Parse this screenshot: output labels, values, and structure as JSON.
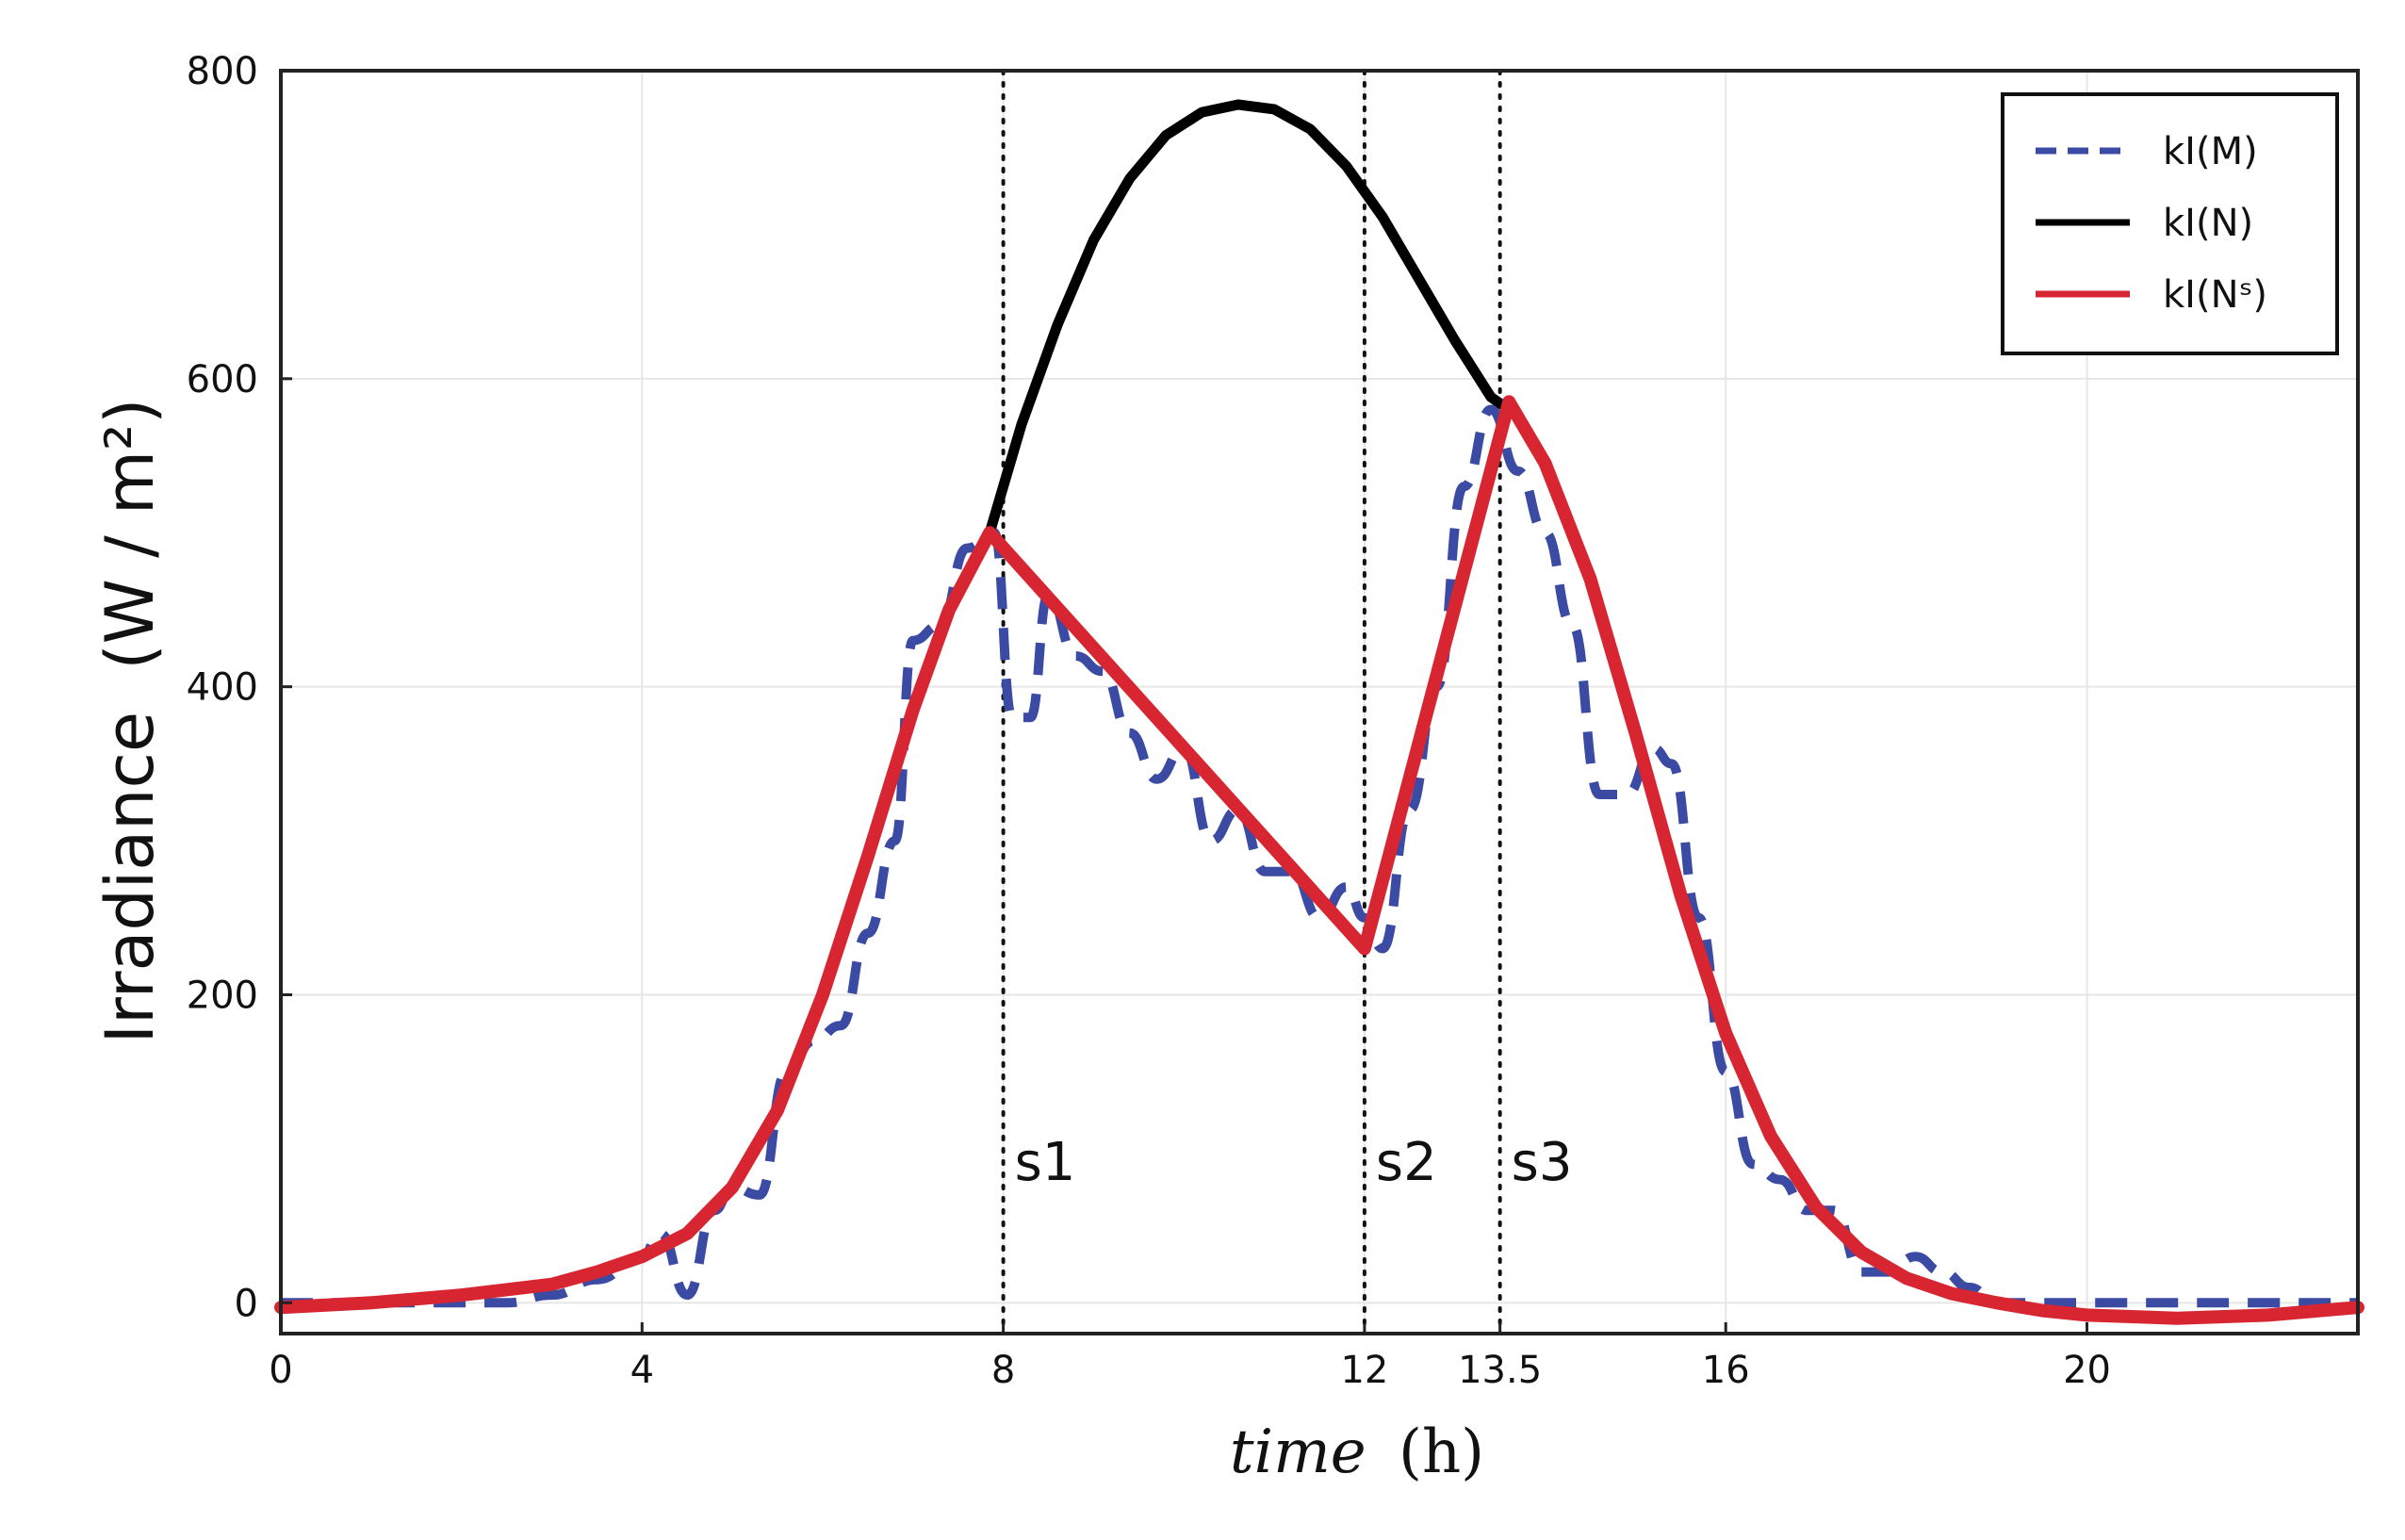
{
  "chart_data": {
    "type": "line",
    "title": "",
    "xlabel": "time",
    "xlabel_unit": "(h)",
    "ylabel": "Irradiance",
    "ylabel_unit": "(W / m²)",
    "xlim": [
      0,
      23
    ],
    "ylim": [
      -20,
      800
    ],
    "xticks": [
      0,
      4,
      8,
      12,
      13.5,
      16,
      20
    ],
    "xtick_labels": [
      "0",
      "4",
      "8",
      "12",
      "13.5",
      "16",
      "20"
    ],
    "yticks": [
      0,
      200,
      400,
      600,
      800
    ],
    "ytick_labels": [
      "0",
      "200",
      "400",
      "600",
      "800"
    ],
    "grid": true,
    "legend_position": "top-right",
    "vlines": [
      {
        "x": 8,
        "label": "s1"
      },
      {
        "x": 12,
        "label": "s2"
      },
      {
        "x": 13.5,
        "label": "s3"
      }
    ],
    "series": [
      {
        "name": "k_I(M)",
        "legend_label": "kI(M)",
        "color": "#3b4aa3",
        "style": "dashed",
        "x": [
          0,
          0.5,
          1,
          1.5,
          2,
          2.5,
          3,
          3.5,
          4,
          4.2,
          4.5,
          4.8,
          5,
          5.3,
          5.6,
          5.9,
          6.2,
          6.5,
          6.8,
          7,
          7.3,
          7.6,
          7.9,
          8.1,
          8.3,
          8.5,
          8.8,
          9.1,
          9.4,
          9.7,
          10,
          10.3,
          10.6,
          10.9,
          11.2,
          11.5,
          11.8,
          12,
          12.2,
          12.5,
          12.8,
          13.1,
          13.4,
          13.7,
          14,
          14.3,
          14.6,
          14.9,
          15.2,
          15.4,
          15.7,
          16,
          16.3,
          16.6,
          16.9,
          17.2,
          17.5,
          17.8,
          18.1,
          18.4,
          18.7,
          19,
          19.5,
          20,
          21,
          22,
          23
        ],
        "values": [
          0,
          0,
          0,
          0,
          0,
          0,
          5,
          15,
          30,
          45,
          5,
          60,
          75,
          70,
          150,
          170,
          180,
          240,
          300,
          430,
          440,
          490,
          500,
          380,
          380,
          460,
          420,
          410,
          370,
          340,
          360,
          300,
          320,
          280,
          280,
          250,
          270,
          250,
          230,
          320,
          400,
          530,
          580,
          540,
          500,
          440,
          330,
          330,
          360,
          350,
          250,
          150,
          90,
          80,
          60,
          60,
          20,
          20,
          30,
          20,
          10,
          0,
          0,
          0,
          0,
          0,
          0
        ]
      },
      {
        "name": "k_I(N)",
        "legend_label": "kI(N)",
        "color": "#000000",
        "style": "solid",
        "x": [
          7.85,
          8.2,
          8.6,
          9,
          9.4,
          9.8,
          10.2,
          10.6,
          11,
          11.4,
          11.8,
          12.2,
          12.6,
          13,
          13.4,
          13.6
        ],
        "values": [
          500,
          570,
          635,
          690,
          730,
          758,
          773,
          778,
          775,
          762,
          738,
          705,
          665,
          625,
          588,
          580
        ]
      },
      {
        "name": "k_I(N^s)",
        "legend_label": "kI(Nˢ)",
        "color": "#d72631",
        "style": "solid",
        "x": [
          0,
          1,
          2,
          3,
          3.5,
          4,
          4.5,
          5,
          5.5,
          6,
          6.5,
          7,
          7.4,
          7.85,
          12,
          13.6,
          14,
          14.5,
          15,
          15.5,
          16,
          16.5,
          17,
          17.5,
          18,
          18.5,
          19,
          19.5,
          20,
          21,
          22,
          23
        ],
        "values": [
          -3,
          0,
          5,
          12,
          20,
          30,
          45,
          75,
          125,
          200,
          290,
          385,
          450,
          500,
          230,
          585,
          545,
          470,
          370,
          265,
          175,
          108,
          62,
          33,
          16,
          6,
          0,
          -5,
          -8,
          -10,
          -8,
          -3
        ]
      }
    ]
  }
}
